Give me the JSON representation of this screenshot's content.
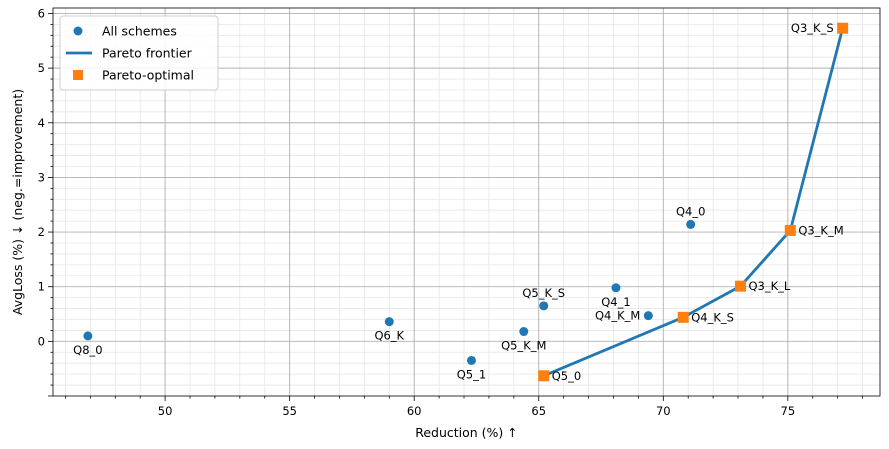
{
  "chart_data": {
    "type": "scatter",
    "xlabel": "Reduction (%)  ↑",
    "ylabel": "AvgLoss (%)  ↓  (neg.=improvement)",
    "xlim": [
      45.5,
      78.7
    ],
    "ylim": [
      -1.0,
      6.1
    ],
    "x_ticks": [
      50,
      55,
      60,
      65,
      70,
      75
    ],
    "y_ticks": [
      0,
      1,
      2,
      3,
      4,
      5,
      6
    ],
    "grid": true,
    "minor_grid": true,
    "legend_position": "top-left",
    "legend": [
      "All schemes",
      "Pareto frontier",
      "Pareto-optimal"
    ],
    "colors": {
      "scatter": "#1f77b4",
      "frontier": "#1f77b4",
      "pareto": "#ff7f0e"
    },
    "series": [
      {
        "name": "All schemes",
        "points": [
          {
            "label": "Q8_0",
            "x": 46.9,
            "y": 0.1
          },
          {
            "label": "Q6_K",
            "x": 59.0,
            "y": 0.36
          },
          {
            "label": "Q5_1",
            "x": 62.3,
            "y": -0.35
          },
          {
            "label": "Q5_K_M",
            "x": 64.4,
            "y": 0.18
          },
          {
            "label": "Q5_K_S",
            "x": 65.2,
            "y": 0.65
          },
          {
            "label": "Q5_0",
            "x": 65.2,
            "y": -0.63
          },
          {
            "label": "Q4_1",
            "x": 68.1,
            "y": 0.98
          },
          {
            "label": "Q4_K_M",
            "x": 69.4,
            "y": 0.47
          },
          {
            "label": "Q4_K_S",
            "x": 70.8,
            "y": 0.44
          },
          {
            "label": "Q4_0",
            "x": 71.1,
            "y": 2.14
          },
          {
            "label": "Q3_K_L",
            "x": 73.1,
            "y": 1.01
          },
          {
            "label": "Q3_K_M",
            "x": 75.1,
            "y": 2.03
          },
          {
            "label": "Q3_K_S",
            "x": 77.2,
            "y": 5.73
          }
        ]
      },
      {
        "name": "Pareto frontier",
        "points": [
          {
            "x": 65.2,
            "y": -0.63
          },
          {
            "x": 70.8,
            "y": 0.44
          },
          {
            "x": 73.1,
            "y": 1.01
          },
          {
            "x": 75.1,
            "y": 2.03
          },
          {
            "x": 77.2,
            "y": 5.73
          }
        ]
      },
      {
        "name": "Pareto-optimal",
        "points": [
          {
            "x": 65.2,
            "y": -0.63
          },
          {
            "x": 70.8,
            "y": 0.44
          },
          {
            "x": 73.1,
            "y": 1.01
          },
          {
            "x": 75.1,
            "y": 2.03
          },
          {
            "x": 77.2,
            "y": 5.73
          }
        ]
      }
    ]
  }
}
